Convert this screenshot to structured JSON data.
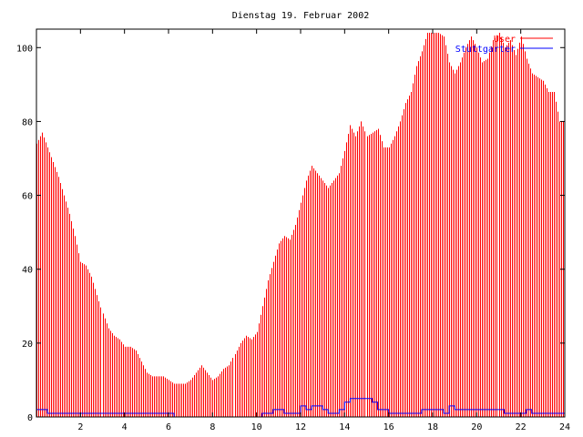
{
  "chart_data": {
    "type": "bar",
    "title": "Dienstag 19. Februar 2002",
    "xlabel": "",
    "ylabel": "",
    "xlim": [
      0,
      24
    ],
    "ylim": [
      0,
      105
    ],
    "xticks": [
      2,
      4,
      6,
      8,
      10,
      12,
      14,
      16,
      18,
      20,
      22,
      24
    ],
    "yticks": [
      0,
      20,
      40,
      60,
      80,
      100
    ],
    "grid": false,
    "legend_position": "top-right",
    "colors": {
      "User": "#ff0000",
      "Stuttgarter": "#0000ff"
    },
    "series": [
      {
        "name": "User",
        "style": "impulses",
        "points": [
          [
            0.0,
            74
          ],
          [
            0.25,
            77
          ],
          [
            0.5,
            73
          ],
          [
            0.75,
            69
          ],
          [
            1.0,
            65
          ],
          [
            1.25,
            60
          ],
          [
            1.5,
            55
          ],
          [
            1.75,
            49
          ],
          [
            2.0,
            42
          ],
          [
            2.25,
            41
          ],
          [
            2.5,
            38
          ],
          [
            2.75,
            33
          ],
          [
            3.0,
            28
          ],
          [
            3.25,
            24
          ],
          [
            3.5,
            22
          ],
          [
            3.75,
            21
          ],
          [
            4.0,
            19
          ],
          [
            4.25,
            19
          ],
          [
            4.5,
            18
          ],
          [
            4.75,
            15
          ],
          [
            5.0,
            12
          ],
          [
            5.25,
            11
          ],
          [
            5.5,
            11
          ],
          [
            5.75,
            11
          ],
          [
            6.0,
            10
          ],
          [
            6.25,
            9
          ],
          [
            6.5,
            9
          ],
          [
            6.75,
            9
          ],
          [
            7.0,
            10
          ],
          [
            7.25,
            12
          ],
          [
            7.5,
            14
          ],
          [
            7.75,
            12
          ],
          [
            8.0,
            10
          ],
          [
            8.25,
            11
          ],
          [
            8.5,
            13
          ],
          [
            8.75,
            14
          ],
          [
            9.0,
            17
          ],
          [
            9.25,
            20
          ],
          [
            9.5,
            22
          ],
          [
            9.75,
            21
          ],
          [
            10.0,
            23
          ],
          [
            10.25,
            30
          ],
          [
            10.5,
            37
          ],
          [
            10.75,
            42
          ],
          [
            11.0,
            47
          ],
          [
            11.25,
            49
          ],
          [
            11.5,
            48
          ],
          [
            11.75,
            52
          ],
          [
            12.0,
            58
          ],
          [
            12.25,
            64
          ],
          [
            12.5,
            68
          ],
          [
            12.75,
            66
          ],
          [
            13.0,
            64
          ],
          [
            13.25,
            62
          ],
          [
            13.5,
            64
          ],
          [
            13.75,
            66
          ],
          [
            14.0,
            72
          ],
          [
            14.25,
            79
          ],
          [
            14.5,
            76
          ],
          [
            14.75,
            80
          ],
          [
            15.0,
            76
          ],
          [
            15.25,
            77
          ],
          [
            15.5,
            78
          ],
          [
            15.75,
            73
          ],
          [
            16.0,
            73
          ],
          [
            16.25,
            76
          ],
          [
            16.5,
            80
          ],
          [
            16.75,
            85
          ],
          [
            17.0,
            88
          ],
          [
            17.25,
            95
          ],
          [
            17.5,
            99
          ],
          [
            17.75,
            104
          ],
          [
            18.0,
            104
          ],
          [
            18.25,
            104
          ],
          [
            18.5,
            103
          ],
          [
            18.75,
            96
          ],
          [
            19.0,
            93
          ],
          [
            19.25,
            96
          ],
          [
            19.5,
            100
          ],
          [
            19.75,
            103
          ],
          [
            20.0,
            100
          ],
          [
            20.25,
            96
          ],
          [
            20.5,
            97
          ],
          [
            20.75,
            102
          ],
          [
            21.0,
            104
          ],
          [
            21.25,
            100
          ],
          [
            21.5,
            102
          ],
          [
            21.75,
            98
          ],
          [
            22.0,
            103
          ],
          [
            22.25,
            97
          ],
          [
            22.5,
            93
          ],
          [
            22.75,
            92
          ],
          [
            23.0,
            91
          ],
          [
            23.25,
            88
          ],
          [
            23.5,
            88
          ],
          [
            23.75,
            80
          ]
        ]
      },
      {
        "name": "Stuttgarter",
        "style": "steps",
        "points": [
          [
            0.0,
            2
          ],
          [
            0.5,
            1
          ],
          [
            6.25,
            0
          ],
          [
            10.25,
            1
          ],
          [
            10.75,
            2
          ],
          [
            11.25,
            1
          ],
          [
            12.0,
            3
          ],
          [
            12.25,
            2
          ],
          [
            12.5,
            3
          ],
          [
            13.0,
            2
          ],
          [
            13.25,
            1
          ],
          [
            13.75,
            2
          ],
          [
            14.0,
            4
          ],
          [
            14.25,
            5
          ],
          [
            15.25,
            4
          ],
          [
            15.5,
            2
          ],
          [
            16.0,
            1
          ],
          [
            17.5,
            2
          ],
          [
            18.5,
            1
          ],
          [
            18.75,
            3
          ],
          [
            19.0,
            2
          ],
          [
            21.25,
            1
          ],
          [
            22.25,
            2
          ],
          [
            22.5,
            1
          ],
          [
            24.0,
            1
          ]
        ]
      }
    ]
  }
}
